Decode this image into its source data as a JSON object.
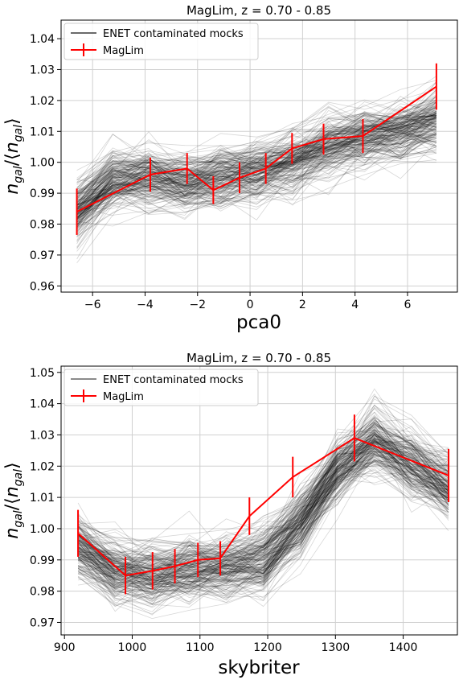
{
  "chart_data": [
    {
      "type": "line",
      "title": "MagLim, z = 0.70 - 0.85",
      "xlabel": "pca0",
      "ylabel": "n_gal/⟨n_gal⟩",
      "xlim": [
        -7.2,
        7.9
      ],
      "ylim": [
        0.958,
        1.046
      ],
      "xticks": [
        -6,
        -4,
        -2,
        0,
        2,
        4,
        6
      ],
      "yticks": [
        0.96,
        0.97,
        0.98,
        0.99,
        1.0,
        1.01,
        1.02,
        1.03,
        1.04
      ],
      "grid": true,
      "legend_position": "top-left",
      "legend": [
        "ENET contaminated mocks",
        "MagLim"
      ],
      "mocks": {
        "name": "ENET contaminated mocks",
        "color": "#000000",
        "count": 220,
        "spread": 0.006,
        "mean": [
          0.984,
          0.994,
          0.995,
          0.993,
          0.995,
          0.997,
          1.0,
          1.005,
          1.008,
          1.01,
          1.013
        ]
      },
      "series": [
        {
          "name": "MagLim",
          "color": "#ff0000",
          "x": [
            -6.6,
            -3.8,
            -2.4,
            -1.4,
            -0.4,
            0.6,
            1.6,
            2.8,
            4.3,
            7.1
          ],
          "y": [
            0.984,
            0.996,
            0.998,
            0.991,
            0.995,
            0.998,
            1.0045,
            1.0075,
            1.0085,
            1.0245
          ],
          "yerr": [
            0.0075,
            0.0055,
            0.005,
            0.0045,
            0.005,
            0.005,
            0.005,
            0.005,
            0.0055,
            0.0075
          ]
        }
      ]
    },
    {
      "type": "line",
      "title": "MagLim, z = 0.70 - 0.85",
      "xlabel": "skybriter",
      "ylabel": "n_gal/⟨n_gal⟩",
      "xlim": [
        895,
        1480
      ],
      "ylim": [
        0.966,
        1.052
      ],
      "xticks": [
        900,
        1000,
        1100,
        1200,
        1300,
        1400
      ],
      "yticks": [
        0.97,
        0.98,
        0.99,
        1.0,
        1.01,
        1.02,
        1.03,
        1.04,
        1.05
      ],
      "grid": true,
      "legend_position": "top-left",
      "legend": [
        "ENET contaminated mocks",
        "MagLim"
      ],
      "mocks": {
        "name": "ENET contaminated mocks",
        "color": "#000000",
        "count": 220,
        "spread": 0.0065,
        "mean": [
          0.994,
          0.986,
          0.985,
          0.987,
          0.988,
          0.99,
          1.002,
          1.018,
          1.028,
          1.02,
          1.013
        ]
      },
      "series": [
        {
          "name": "MagLim",
          "color": "#ff0000",
          "x": [
            920,
            990,
            1030,
            1063,
            1097,
            1130,
            1173,
            1237,
            1328,
            1467
          ],
          "y": [
            0.9985,
            0.985,
            0.9865,
            0.988,
            0.99,
            0.9905,
            1.004,
            1.0165,
            1.029,
            1.017
          ],
          "yerr": [
            0.0075,
            0.006,
            0.006,
            0.0055,
            0.0055,
            0.0055,
            0.006,
            0.0065,
            0.0075,
            0.0085
          ]
        }
      ]
    }
  ],
  "panels": [
    {
      "title": "MagLim, z = 0.70 - 0.85",
      "xlabel": "pca0",
      "ylabel_main": "n",
      "ylabel_sub": "gal",
      "legend_mocks": "ENET contaminated mocks",
      "legend_series": "MagLim"
    },
    {
      "title": "MagLim, z = 0.70 - 0.85",
      "xlabel": "skybriter",
      "ylabel_main": "n",
      "ylabel_sub": "gal",
      "legend_mocks": "ENET contaminated mocks",
      "legend_series": "MagLim"
    }
  ]
}
